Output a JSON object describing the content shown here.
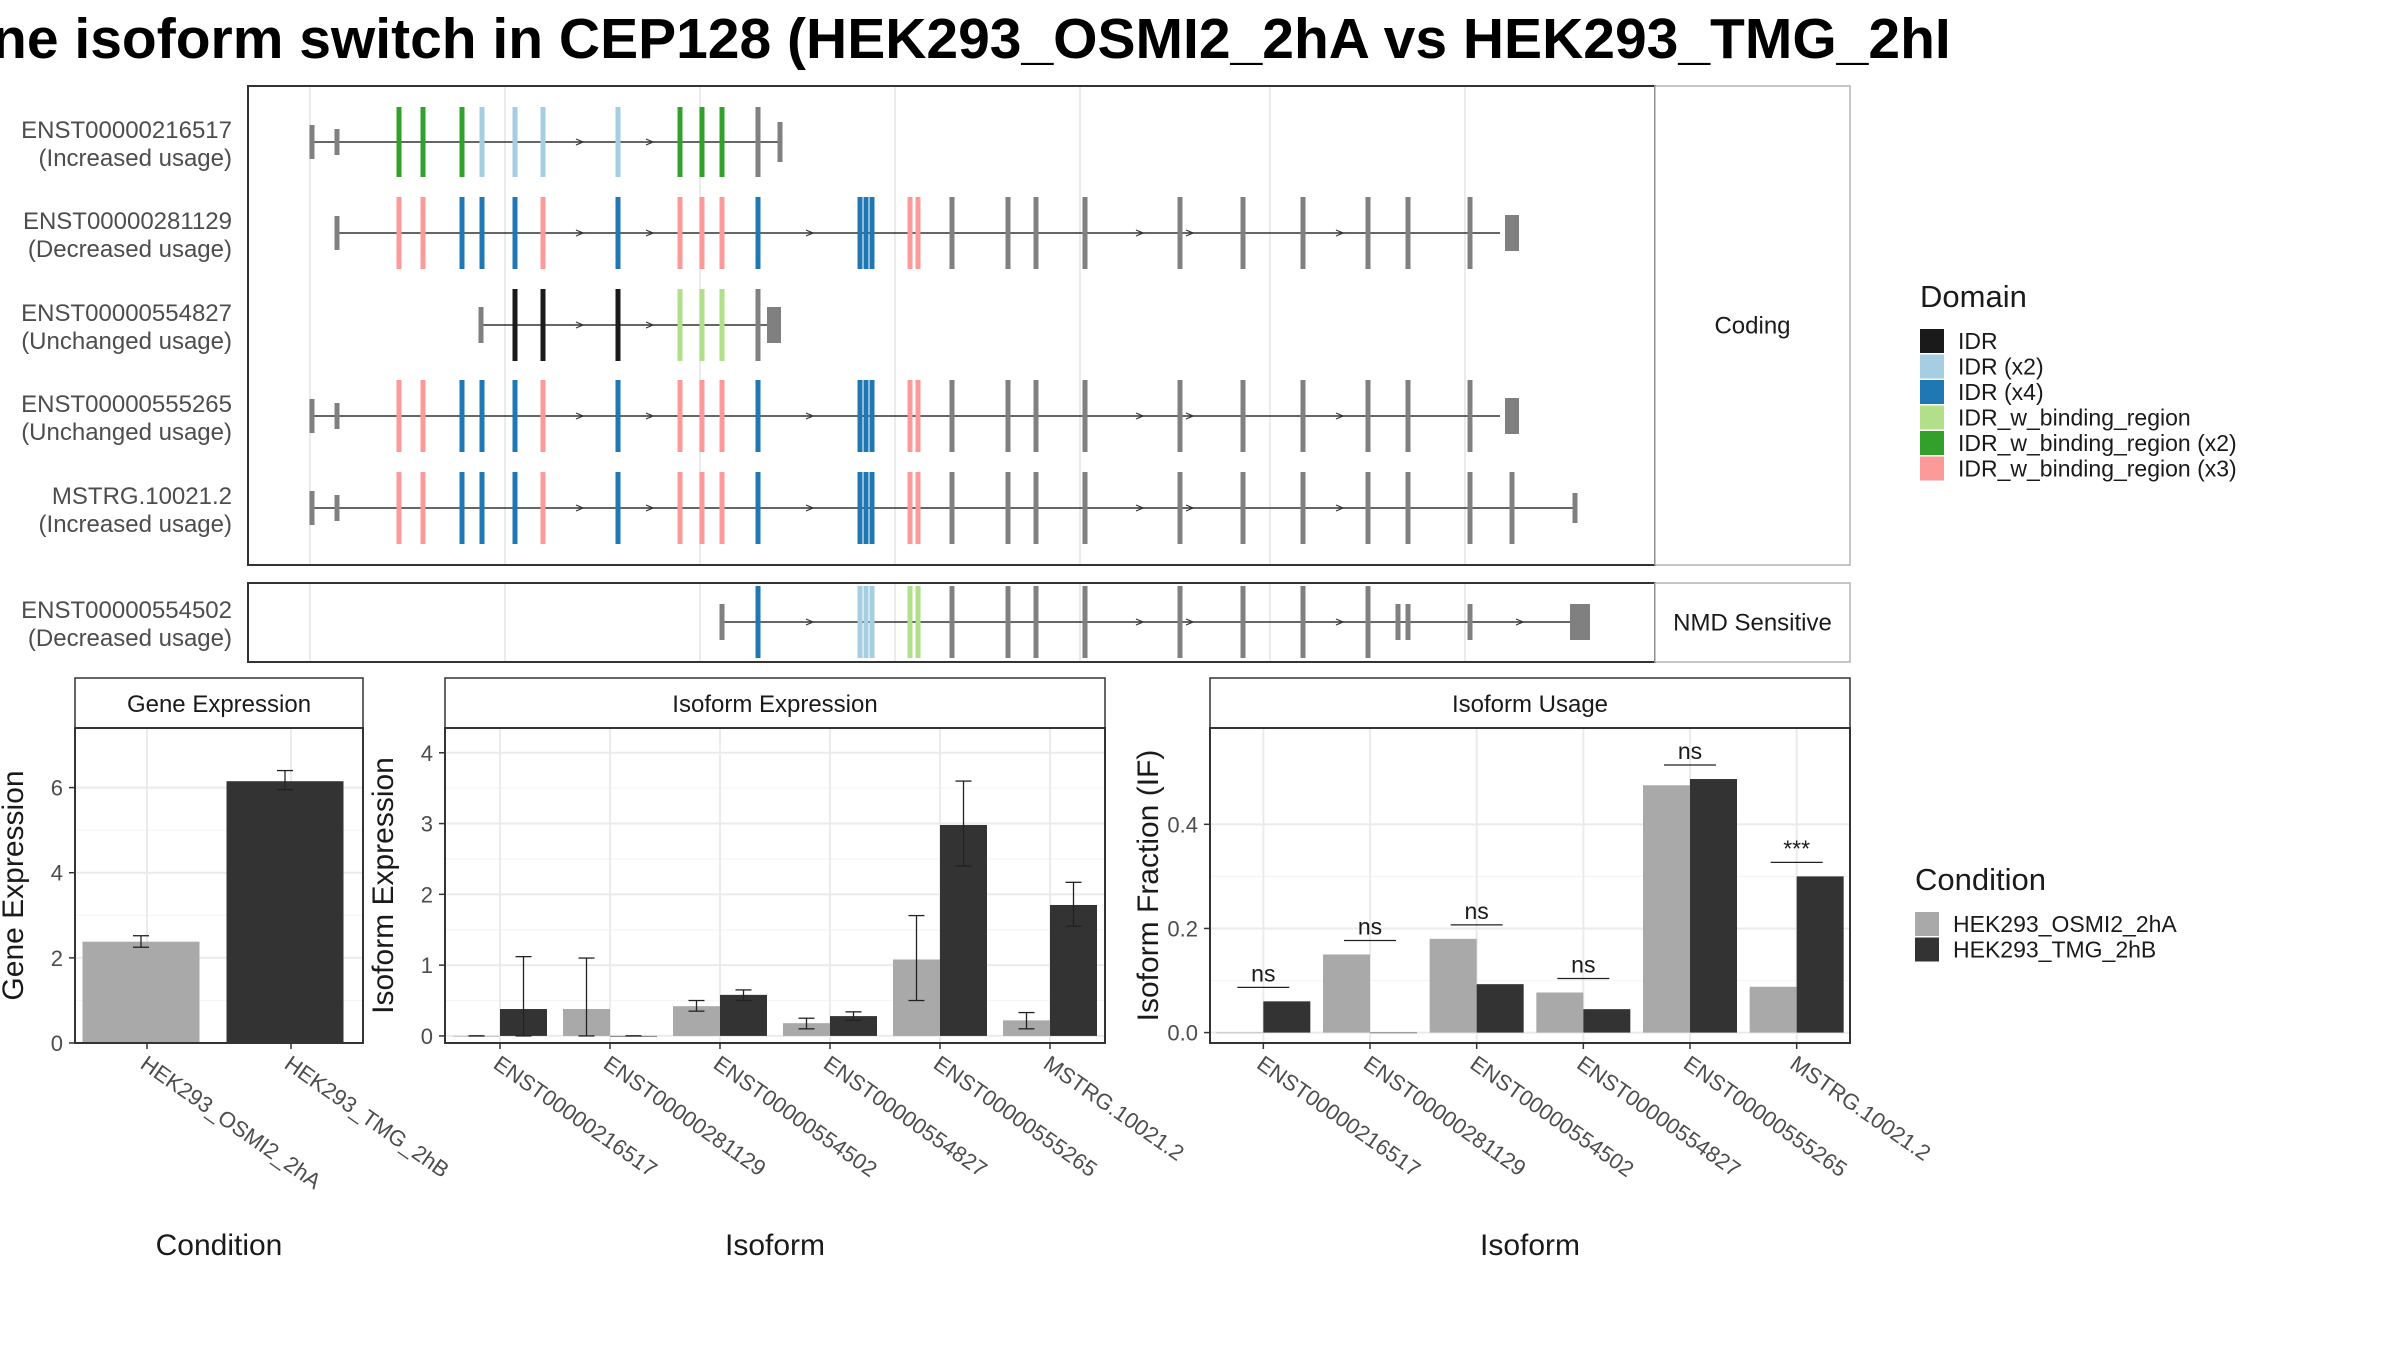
{
  "title": "ne isoform switch in CEP128 (HEK293_OSMI2_2hA vs HEK293_TMG_2hI",
  "structure": {
    "facets": [
      "Coding",
      "NMD Sensitive"
    ],
    "isoforms": [
      {
        "id": "ENST00000216517",
        "usage": "(Increased usage)"
      },
      {
        "id": "ENST00000281129",
        "usage": "(Decreased usage)"
      },
      {
        "id": "ENST00000554827",
        "usage": "(Unchanged usage)"
      },
      {
        "id": "ENST00000555265",
        "usage": "(Unchanged usage)"
      },
      {
        "id": "MSTRG.10021.2",
        "usage": "(Increased usage)"
      },
      {
        "id": "ENST00000554502",
        "usage": "(Decreased usage)"
      }
    ]
  },
  "legend_domain": {
    "title": "Domain",
    "items": [
      {
        "label": "IDR",
        "color": "#1a1a1a"
      },
      {
        "label": "IDR (x2)",
        "color": "#a6cee3"
      },
      {
        "label": "IDR (x4)",
        "color": "#1f78b4"
      },
      {
        "label": "IDR_w_binding_region",
        "color": "#b2df8a"
      },
      {
        "label": "IDR_w_binding_region (x2)",
        "color": "#33a02c"
      },
      {
        "label": "IDR_w_binding_region (x3)",
        "color": "#fb9a99"
      }
    ]
  },
  "legend_condition": {
    "title": "Condition",
    "items": [
      {
        "label": "HEK293_OSMI2_2hA",
        "color": "#a9a9a9"
      },
      {
        "label": "HEK293_TMG_2hB",
        "color": "#333333"
      }
    ]
  },
  "chart_data": [
    {
      "type": "bar",
      "title": "Gene Expression",
      "xlabel": "Condition",
      "ylabel": "Gene Expression",
      "ylim": [
        0,
        7.4
      ],
      "yticks": [
        0,
        2,
        4,
        6
      ],
      "categories": [
        "HEK293_OSMI2_2hA",
        "HEK293_TMG_2hB"
      ],
      "values": [
        2.38,
        6.15
      ],
      "errors": [
        [
          2.25,
          2.52
        ],
        [
          5.95,
          6.4
        ]
      ]
    },
    {
      "type": "bar",
      "title": "Isoform Expression",
      "xlabel": "Isoform",
      "ylabel": "Isoform Expression",
      "ylim": [
        -0.1,
        4.35
      ],
      "yticks": [
        0,
        1,
        2,
        3,
        4
      ],
      "categories": [
        "ENST00000216517",
        "ENST00000281129",
        "ENST00000554502",
        "ENST00000554827",
        "ENST00000555265",
        "MSTRG.10021.2"
      ],
      "series": [
        {
          "name": "HEK293_OSMI2_2hA",
          "values": [
            0.0,
            0.38,
            0.42,
            0.18,
            1.08,
            0.22
          ],
          "errors": [
            [
              0.0,
              0.0
            ],
            [
              0.0,
              1.1
            ],
            [
              0.35,
              0.5
            ],
            [
              0.1,
              0.25
            ],
            [
              0.5,
              1.7
            ],
            [
              0.1,
              0.33
            ]
          ]
        },
        {
          "name": "HEK293_TMG_2hB",
          "values": [
            0.38,
            0.0,
            0.58,
            0.28,
            2.98,
            1.85
          ],
          "errors": [
            [
              0.0,
              1.12
            ],
            [
              0.0,
              0.0
            ],
            [
              0.5,
              0.65
            ],
            [
              0.22,
              0.34
            ],
            [
              2.4,
              3.6
            ],
            [
              1.55,
              2.17
            ]
          ]
        }
      ]
    },
    {
      "type": "bar",
      "title": "Isoform Usage",
      "xlabel": "Isoform",
      "ylabel": "Isoform Fraction (IF)",
      "ylim": [
        -0.02,
        0.585
      ],
      "yticks": [
        "0.0",
        "0.2",
        "0.4"
      ],
      "categories": [
        "ENST00000216517",
        "ENST00000281129",
        "ENST00000554502",
        "ENST00000554827",
        "ENST00000555265",
        "MSTRG.10021.2"
      ],
      "series": [
        {
          "name": "HEK293_OSMI2_2hA",
          "values": [
            0.0,
            0.15,
            0.18,
            0.077,
            0.475,
            0.088
          ]
        },
        {
          "name": "HEK293_TMG_2hB",
          "values": [
            0.06,
            0.0,
            0.093,
            0.045,
            0.487,
            0.3
          ]
        }
      ],
      "significance": [
        "ns",
        "ns",
        "ns",
        "ns",
        "ns",
        "***"
      ]
    }
  ]
}
